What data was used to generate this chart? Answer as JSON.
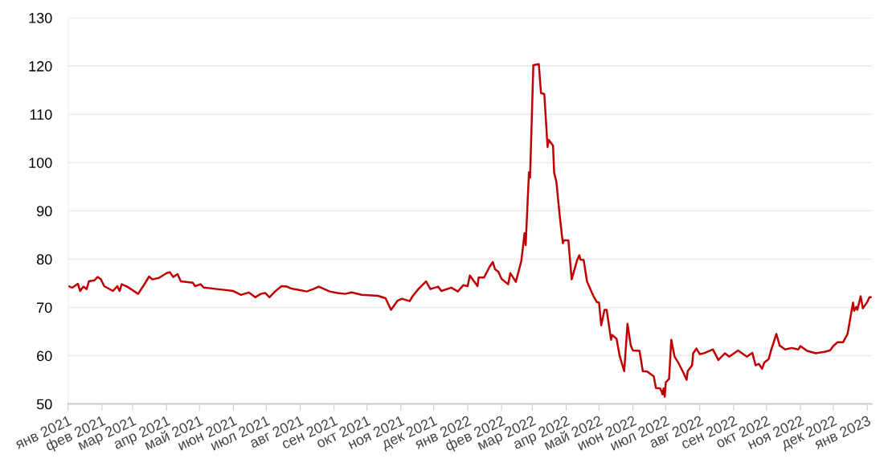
{
  "chart_data": {
    "type": "line",
    "x": [
      "2021-01-01",
      "2021-01-05",
      "2021-01-10",
      "2021-01-12",
      "2021-01-15",
      "2021-01-18",
      "2021-01-20",
      "2021-01-25",
      "2021-01-28",
      "2021-01-31",
      "2021-02-03",
      "2021-02-11",
      "2021-02-15",
      "2021-02-17",
      "2021-02-19",
      "2021-02-24",
      "2021-03-06",
      "2021-03-12",
      "2021-03-16",
      "2021-03-19",
      "2021-03-25",
      "2021-04-01",
      "2021-04-04",
      "2021-04-07",
      "2021-04-11",
      "2021-04-14",
      "2021-04-25",
      "2021-04-27",
      "2021-05-02",
      "2021-05-05",
      "2021-05-17",
      "2021-06-01",
      "2021-06-08",
      "2021-06-15",
      "2021-06-21",
      "2021-06-26",
      "2021-06-30",
      "2021-07-04",
      "2021-07-09",
      "2021-07-15",
      "2021-07-20",
      "2021-07-24",
      "2021-07-31",
      "2021-08-07",
      "2021-08-13",
      "2021-08-18",
      "2021-08-28",
      "2021-09-04",
      "2021-09-11",
      "2021-09-17",
      "2021-09-26",
      "2021-10-11",
      "2021-10-18",
      "2021-10-23",
      "2021-10-29",
      "2021-11-02",
      "2021-11-09",
      "2021-11-12",
      "2021-11-17",
      "2021-11-24",
      "2021-11-28",
      "2021-12-05",
      "2021-12-08",
      "2021-12-17",
      "2021-12-23",
      "2021-12-28",
      "2022-01-01",
      "2022-01-03",
      "2022-01-10",
      "2022-01-11",
      "2022-01-16",
      "2022-01-21",
      "2022-01-24",
      "2022-01-26",
      "2022-01-29",
      "2022-02-01",
      "2022-02-07",
      "2022-02-09",
      "2022-02-14",
      "2022-02-19",
      "2022-02-22",
      "2022-02-23",
      "2022-02-26",
      "2022-02-27",
      "2022-03-02",
      "2022-03-07",
      "2022-03-09",
      "2022-03-12",
      "2022-03-15",
      "2022-03-16",
      "2022-03-20",
      "2022-03-21",
      "2022-03-23",
      "2022-03-26",
      "2022-03-28",
      "2022-03-29",
      "2022-03-30",
      "2022-04-03",
      "2022-04-06",
      "2022-04-11",
      "2022-04-13",
      "2022-04-14",
      "2022-04-17",
      "2022-04-20",
      "2022-04-24",
      "2022-04-26",
      "2022-04-29",
      "2022-05-01",
      "2022-05-03",
      "2022-05-06",
      "2022-05-08",
      "2022-05-12",
      "2022-05-13",
      "2022-05-17",
      "2022-05-20",
      "2022-05-24",
      "2022-05-27",
      "2022-05-30",
      "2022-06-01",
      "2022-06-07",
      "2022-06-10",
      "2022-06-14",
      "2022-06-20",
      "2022-06-22",
      "2022-06-26",
      "2022-06-28",
      "2022-06-29",
      "2022-06-30",
      "2022-07-01",
      "2022-07-04",
      "2022-07-06",
      "2022-07-09",
      "2022-07-13",
      "2022-07-17",
      "2022-07-20",
      "2022-07-21",
      "2022-07-25",
      "2022-07-26",
      "2022-07-29",
      "2022-08-01",
      "2022-08-06",
      "2022-08-13",
      "2022-08-18",
      "2022-08-24",
      "2022-08-28",
      "2022-09-05",
      "2022-09-13",
      "2022-09-18",
      "2022-09-21",
      "2022-09-24",
      "2022-09-27",
      "2022-09-29",
      "2022-10-03",
      "2022-10-05",
      "2022-10-10",
      "2022-10-13",
      "2022-10-18",
      "2022-10-24",
      "2022-10-30",
      "2022-11-01",
      "2022-11-07",
      "2022-11-15",
      "2022-11-23",
      "2022-11-28",
      "2022-12-01",
      "2022-12-05",
      "2022-12-10",
      "2022-12-14",
      "2022-12-19",
      "2022-12-20",
      "2022-12-22",
      "2022-12-23",
      "2022-12-26",
      "2022-12-28",
      "2023-01-01",
      "2023-01-03",
      "2023-01-05"
    ],
    "series": [
      {
        "color": "#c00000",
        "values": [
          74.4,
          74.1,
          74.9,
          73.4,
          74.3,
          73.8,
          75.4,
          75.6,
          76.3,
          75.8,
          74.4,
          73.4,
          74.4,
          73.4,
          74.8,
          74.3,
          72.8,
          74.9,
          76.4,
          75.8,
          76.1,
          77.1,
          77.3,
          76.3,
          76.9,
          75.4,
          75.1,
          74.4,
          74.8,
          74.1,
          73.8,
          73.4,
          72.6,
          73.1,
          72.1,
          72.8,
          73.0,
          72.1,
          73.3,
          74.4,
          74.3,
          73.9,
          73.6,
          73.3,
          73.8,
          74.3,
          73.3,
          73.0,
          72.8,
          73.1,
          72.6,
          72.4,
          71.9,
          69.5,
          71.4,
          71.8,
          71.3,
          72.4,
          73.8,
          75.4,
          73.8,
          74.3,
          73.4,
          74.1,
          73.3,
          74.6,
          74.4,
          76.6,
          74.4,
          76.2,
          76.2,
          78.4,
          79.4,
          77.9,
          77.4,
          75.9,
          74.8,
          77.1,
          75.3,
          79.6,
          85.4,
          82.9,
          98.0,
          96.9,
          120.2,
          120.4,
          114.4,
          114.2,
          103.2,
          104.7,
          103.5,
          97.9,
          96.1,
          89.2,
          85.1,
          83.3,
          83.9,
          83.9,
          75.8,
          79.8,
          80.8,
          79.9,
          79.8,
          75.4,
          73.3,
          72.3,
          71.1,
          71.0,
          66.3,
          69.5,
          69.5,
          63.3,
          64.3,
          63.5,
          59.8,
          56.8,
          66.6,
          62.1,
          61.1,
          61.0,
          56.8,
          56.7,
          55.7,
          53.3,
          53.2,
          52.0,
          53.2,
          51.5,
          54.5,
          55.2,
          63.3,
          59.8,
          58.3,
          56.5,
          55.0,
          56.8,
          58.0,
          60.5,
          61.5,
          60.3,
          60.6,
          61.3,
          59.1,
          60.5,
          59.8,
          61.1,
          59.8,
          60.6,
          58.0,
          58.3,
          57.3,
          58.6,
          59.3,
          61.0,
          64.5,
          62.1,
          61.3,
          61.6,
          61.3,
          62.0,
          61.0,
          60.5,
          60.8,
          61.1,
          62.0,
          62.8,
          62.8,
          64.5,
          71.0,
          69.3,
          70.1,
          69.5,
          72.3,
          69.8,
          71.1,
          72.1,
          72.1
        ]
      }
    ],
    "xlim": [
      "2021-01-01",
      "2023-01-05"
    ],
    "xticks": [
      {
        "value": "2021-01-01",
        "label": "янв 2021"
      },
      {
        "value": "2021-02-01",
        "label": "фев 2021"
      },
      {
        "value": "2021-03-01",
        "label": "мар 2021"
      },
      {
        "value": "2021-04-01",
        "label": "апр 2021"
      },
      {
        "value": "2021-05-01",
        "label": "май 2021"
      },
      {
        "value": "2021-06-01",
        "label": "июн 2021"
      },
      {
        "value": "2021-07-01",
        "label": "июл 2021"
      },
      {
        "value": "2021-08-01",
        "label": "авг 2021"
      },
      {
        "value": "2021-09-01",
        "label": "сен 2021"
      },
      {
        "value": "2021-10-01",
        "label": "окт 2021"
      },
      {
        "value": "2021-11-01",
        "label": "ноя 2021"
      },
      {
        "value": "2021-12-01",
        "label": "дек 2021"
      },
      {
        "value": "2022-01-01",
        "label": "янв 2022"
      },
      {
        "value": "2022-02-01",
        "label": "фев 2022"
      },
      {
        "value": "2022-03-01",
        "label": "мар 2022"
      },
      {
        "value": "2022-04-01",
        "label": "апр 2022"
      },
      {
        "value": "2022-05-01",
        "label": "май 2022"
      },
      {
        "value": "2022-06-01",
        "label": "июн 2022"
      },
      {
        "value": "2022-07-01",
        "label": "июл 2022"
      },
      {
        "value": "2022-08-01",
        "label": "авг 2022"
      },
      {
        "value": "2022-09-01",
        "label": "сен 2022"
      },
      {
        "value": "2022-10-01",
        "label": "окт 2022"
      },
      {
        "value": "2022-11-01",
        "label": "ноя 2022"
      },
      {
        "value": "2022-12-01",
        "label": "дек 2022"
      },
      {
        "value": "2023-01-01",
        "label": "янв 2023"
      }
    ],
    "ylim": [
      50,
      130
    ],
    "yticks": [
      50,
      60,
      70,
      80,
      90,
      100,
      110,
      120,
      130
    ],
    "grid": "y",
    "legend": false,
    "marker": "none",
    "line_style": "solid"
  }
}
